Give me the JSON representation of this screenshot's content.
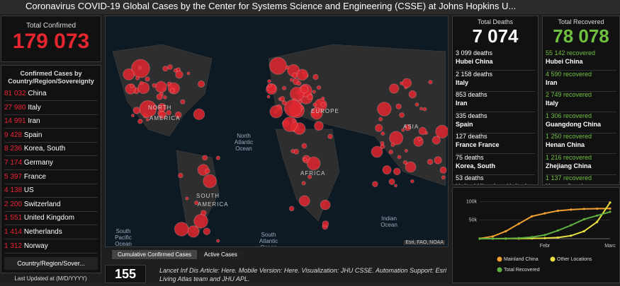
{
  "header": {
    "title": "Coronavirus COVID-19 Global Cases by the Center for Systems Science and Engineering (CSSE) at Johns Hopkins U..."
  },
  "confirmed": {
    "label": "Total Confirmed",
    "total": "179 073",
    "list_title": "Confirmed Cases by Country/Region/Sovereignty",
    "rows": [
      [
        "81 032",
        "China"
      ],
      [
        "27 980",
        "Italy"
      ],
      [
        "14 991",
        "Iran"
      ],
      [
        "9 428",
        "Spain"
      ],
      [
        "8 236",
        "Korea, South"
      ],
      [
        "7 174",
        "Germany"
      ],
      [
        "5 397",
        "France"
      ],
      [
        "4 138",
        "US"
      ],
      [
        "2 200",
        "Switzerland"
      ],
      [
        "1 551",
        "United Kingdom"
      ],
      [
        "1 414",
        "Netherlands"
      ],
      [
        "1 312",
        "Norway"
      ]
    ],
    "selector": "Country/Region/Sover...",
    "updated": "Last Updated at (M/D/YYYY)"
  },
  "map": {
    "labels": [
      "NORTH",
      "AMERICA",
      "North Atlantic Ocean",
      "EUROPE",
      "AFRICA",
      "ASIA",
      "SOUTH",
      "AMERICA",
      "South Atlantic Ocean",
      "Indian Ocean",
      "South Pacific Ocean"
    ],
    "attribution": "Esri, FAO, NOAA",
    "tabs": [
      "Cumulative Confirmed Cases",
      "Active Cases"
    ]
  },
  "footer": {
    "count": "155",
    "text": "Lancet Inf Dis Article: Here. Mobile Version: Here. Visualization: JHU CSSE. Automation Support: Esri Living Atlas team and JHU APL."
  },
  "deaths": {
    "label": "Total Deaths",
    "total": "7 074",
    "rows": [
      [
        "3 099 deaths",
        "Hubei China"
      ],
      [
        "2 158 deaths",
        "Italy"
      ],
      [
        "853 deaths",
        "Iran"
      ],
      [
        "335 deaths",
        "Spain"
      ],
      [
        "127 deaths",
        "France France"
      ],
      [
        "75 deaths",
        "Korea, South"
      ],
      [
        "53 deaths",
        "United Kingdom United"
      ]
    ]
  },
  "recovered": {
    "label": "Total Recovered",
    "total": "78 078",
    "rows": [
      [
        "55 142 recovered",
        "Hubei China"
      ],
      [
        "4 590 recovered",
        "Iran"
      ],
      [
        "2 749 recovered",
        "Italy"
      ],
      [
        "1 306 recovered",
        "Guangdong China"
      ],
      [
        "1 250 recovered",
        "Henan China"
      ],
      [
        "1 216 recovered",
        "Zhejiang China"
      ],
      [
        "1 137 recovered",
        "Korea, South"
      ]
    ]
  },
  "chart_data": {
    "type": "line",
    "categories": [
      null,
      null,
      null,
      null,
      null,
      "Febr",
      null,
      null,
      null,
      null,
      "Marc"
    ],
    "series": [
      {
        "name": "Mainland China",
        "color": "#f0a030",
        "values": [
          500,
          6000,
          20000,
          40000,
          60000,
          68000,
          75000,
          78000,
          80000,
          80700,
          81000
        ]
      },
      {
        "name": "Other Locations",
        "color": "#e8e040",
        "values": [
          0,
          100,
          200,
          400,
          800,
          1500,
          3000,
          8000,
          20000,
          45000,
          97000
        ]
      },
      {
        "name": "Total Recovered",
        "color": "#60b040",
        "values": [
          0,
          100,
          500,
          1500,
          4000,
          10000,
          22000,
          36000,
          52000,
          62000,
          72000
        ]
      }
    ],
    "ylim": [
      0,
      110000
    ],
    "yticks": [
      {
        "value": 50000,
        "label": "50k"
      },
      {
        "value": 100000,
        "label": "100k"
      }
    ],
    "grid": true
  }
}
